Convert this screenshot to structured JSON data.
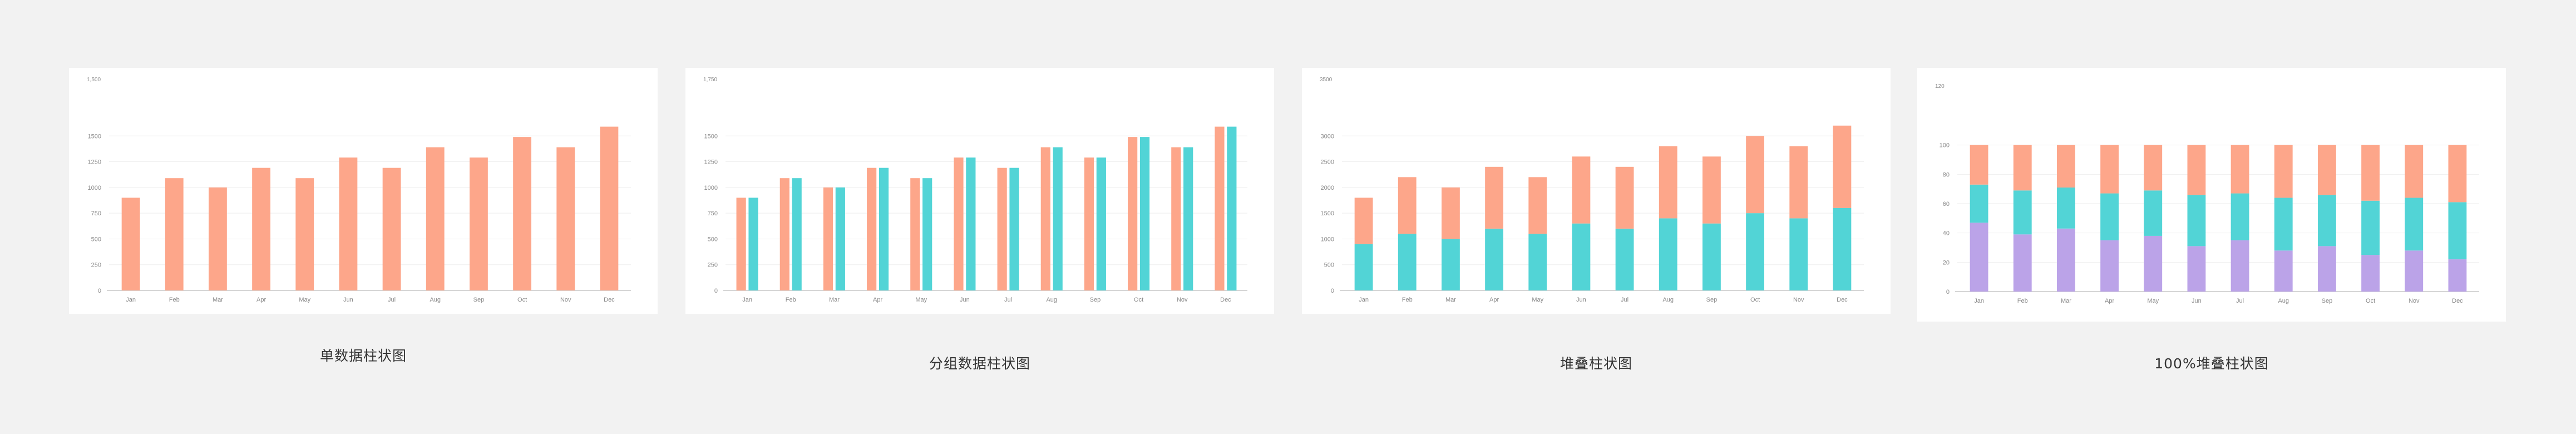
{
  "colors": {
    "orange": "#fda68a",
    "teal": "#52d4d6",
    "purple": "#bba3e8",
    "grid": "#eeeeee",
    "axis": "#c8c8c8"
  },
  "chart_data": [
    {
      "id": "single",
      "type": "bar",
      "caption": "单数据柱状图",
      "unit": "1,500",
      "categories": [
        "Jan",
        "Feb",
        "Mar",
        "Apr",
        "May",
        "Jun",
        "Jul",
        "Aug",
        "Sep",
        "Oct",
        "Nov",
        "Dec"
      ],
      "series": [
        {
          "values": [
            900,
            1090,
            1000,
            1190,
            1090,
            1290,
            1190,
            1390,
            1290,
            1490,
            1390,
            1590
          ],
          "color": "orange"
        }
      ],
      "ylim": [
        0,
        1750
      ],
      "yticks": [
        0,
        250,
        500,
        750,
        1000,
        1250,
        1500
      ],
      "grid": true
    },
    {
      "id": "grouped",
      "type": "bar",
      "caption": "分组数据柱状图",
      "unit": "1,750",
      "categories": [
        "Jan",
        "Feb",
        "Mar",
        "Apr",
        "May",
        "Jun",
        "Jul",
        "Aug",
        "Sep",
        "Oct",
        "Nov",
        "Dec"
      ],
      "series": [
        {
          "values": [
            900,
            1090,
            1000,
            1190,
            1090,
            1290,
            1190,
            1390,
            1290,
            1490,
            1390,
            1590
          ],
          "color": "orange"
        },
        {
          "values": [
            900,
            1090,
            1000,
            1190,
            1090,
            1290,
            1190,
            1390,
            1290,
            1490,
            1390,
            1590
          ],
          "color": "teal"
        }
      ],
      "ylim": [
        0,
        1750
      ],
      "yticks": [
        0,
        250,
        500,
        750,
        1000,
        1250,
        1500
      ],
      "grid": true
    },
    {
      "id": "stacked",
      "type": "bar",
      "stacked": true,
      "caption": "堆叠柱状图",
      "unit": "3500",
      "categories": [
        "Jan",
        "Feb",
        "Mar",
        "Apr",
        "May",
        "Jun",
        "Jul",
        "Aug",
        "Sep",
        "Oct",
        "Nov",
        "Dec"
      ],
      "series": [
        {
          "values": [
            900,
            1100,
            1000,
            1200,
            1100,
            1300,
            1200,
            1400,
            1300,
            1500,
            1400,
            1600
          ],
          "color": "teal"
        },
        {
          "values": [
            900,
            1100,
            1000,
            1200,
            1100,
            1300,
            1200,
            1400,
            1300,
            1500,
            1400,
            1600
          ],
          "color": "orange"
        }
      ],
      "ylim": [
        0,
        3500
      ],
      "yticks": [
        0,
        500,
        1000,
        1500,
        2000,
        2500,
        3000
      ],
      "grid": true
    },
    {
      "id": "percent",
      "type": "bar",
      "stacked": true,
      "percent": true,
      "caption": "100%堆叠柱状图",
      "unit": "120",
      "categories": [
        "Jan",
        "Feb",
        "Mar",
        "Apr",
        "May",
        "Jun",
        "Jul",
        "Aug",
        "Sep",
        "Oct",
        "Nov",
        "Dec"
      ],
      "series": [
        {
          "values": [
            47,
            39,
            43,
            35,
            38,
            31,
            35,
            28,
            31,
            25,
            28,
            22
          ],
          "color": "purple"
        },
        {
          "values": [
            26,
            30,
            28,
            32,
            31,
            35,
            32,
            36,
            35,
            37,
            36,
            39
          ],
          "color": "teal"
        },
        {
          "values": [
            27,
            31,
            29,
            33,
            31,
            34,
            33,
            36,
            34,
            38,
            36,
            39
          ],
          "color": "orange"
        }
      ],
      "ylim": [
        0,
        120
      ],
      "yticks": [
        0,
        20,
        40,
        60,
        80,
        100
      ],
      "grid": true
    }
  ]
}
